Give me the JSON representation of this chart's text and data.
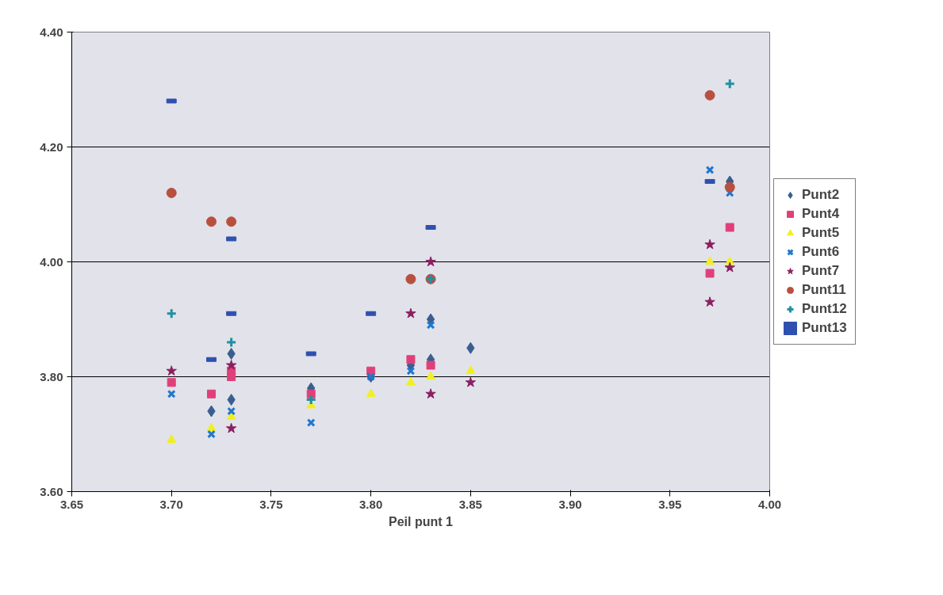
{
  "chart_data": {
    "type": "scatter",
    "xlabel": "Peil punt 1",
    "xlim": [
      3.65,
      4.0
    ],
    "xticks": [
      {
        "value": 3.65,
        "label": "3.65"
      },
      {
        "value": 3.7,
        "label": "3.70"
      },
      {
        "value": 3.75,
        "label": "3.75"
      },
      {
        "value": 3.8,
        "label": "3.80"
      },
      {
        "value": 3.85,
        "label": "3.85"
      },
      {
        "value": 3.9,
        "label": "3.90"
      },
      {
        "value": 3.95,
        "label": "3.95"
      },
      {
        "value": 4.0,
        "label": "4.00"
      }
    ],
    "ylim": [
      3.6,
      4.4
    ],
    "yticks": [
      {
        "value": 3.6,
        "label": "3.60"
      },
      {
        "value": 3.8,
        "label": "3.80"
      },
      {
        "value": 4.0,
        "label": "4.00"
      },
      {
        "value": 4.2,
        "label": "4.20"
      },
      {
        "value": 4.4,
        "label": "4.40"
      }
    ],
    "grid": "y",
    "legend": "right",
    "series": [
      {
        "name": "Punt2",
        "color": "#3a5f8f",
        "marker": "diamond",
        "x": [
          3.72,
          3.73,
          3.73,
          3.77,
          3.8,
          3.82,
          3.83,
          3.83,
          3.85,
          3.98
        ],
        "values": [
          3.74,
          3.84,
          3.76,
          3.78,
          3.8,
          3.82,
          3.9,
          3.83,
          3.85,
          4.14
        ]
      },
      {
        "name": "Punt4",
        "color": "#e0407a",
        "marker": "square",
        "x": [
          3.7,
          3.72,
          3.73,
          3.73,
          3.77,
          3.8,
          3.82,
          3.83,
          3.97,
          3.98
        ],
        "values": [
          3.79,
          3.77,
          3.8,
          3.81,
          3.77,
          3.81,
          3.83,
          3.82,
          3.98,
          4.06
        ]
      },
      {
        "name": "Punt5",
        "color": "#f0f020",
        "marker": "triangle",
        "x": [
          3.7,
          3.72,
          3.73,
          3.77,
          3.8,
          3.82,
          3.83,
          3.85,
          3.97,
          3.98
        ],
        "values": [
          3.69,
          3.71,
          3.73,
          3.75,
          3.77,
          3.79,
          3.8,
          3.81,
          4.0,
          4.0
        ]
      },
      {
        "name": "Punt6",
        "color": "#1f78d0",
        "marker": "cross",
        "x": [
          3.7,
          3.72,
          3.73,
          3.77,
          3.8,
          3.82,
          3.83,
          3.97,
          3.98
        ],
        "values": [
          3.77,
          3.7,
          3.74,
          3.72,
          3.8,
          3.81,
          3.89,
          4.16,
          4.12
        ]
      },
      {
        "name": "Punt7",
        "color": "#8b2060",
        "marker": "star",
        "x": [
          3.7,
          3.73,
          3.73,
          3.82,
          3.83,
          3.83,
          3.85,
          3.97,
          3.97,
          3.98
        ],
        "values": [
          3.81,
          3.71,
          3.82,
          3.91,
          4.0,
          3.77,
          3.79,
          4.03,
          3.93,
          3.99
        ]
      },
      {
        "name": "Punt11",
        "color": "#b85040",
        "marker": "circle",
        "x": [
          3.7,
          3.72,
          3.73,
          3.82,
          3.83,
          3.97,
          3.98
        ],
        "values": [
          4.12,
          4.07,
          4.07,
          3.97,
          3.97,
          4.29,
          4.13
        ]
      },
      {
        "name": "Punt12",
        "color": "#2090a0",
        "marker": "cross",
        "x": [
          3.7,
          3.73,
          3.77,
          3.83,
          3.98
        ],
        "values": [
          3.91,
          3.86,
          3.76,
          3.97,
          4.31
        ]
      },
      {
        "name": "Punt13",
        "color": "#3050b0",
        "marker": "square",
        "x": [
          3.7,
          3.72,
          3.73,
          3.73,
          3.77,
          3.8,
          3.83,
          3.97
        ],
        "values": [
          4.28,
          3.83,
          4.04,
          3.91,
          3.84,
          3.91,
          4.06,
          4.14
        ]
      }
    ]
  }
}
